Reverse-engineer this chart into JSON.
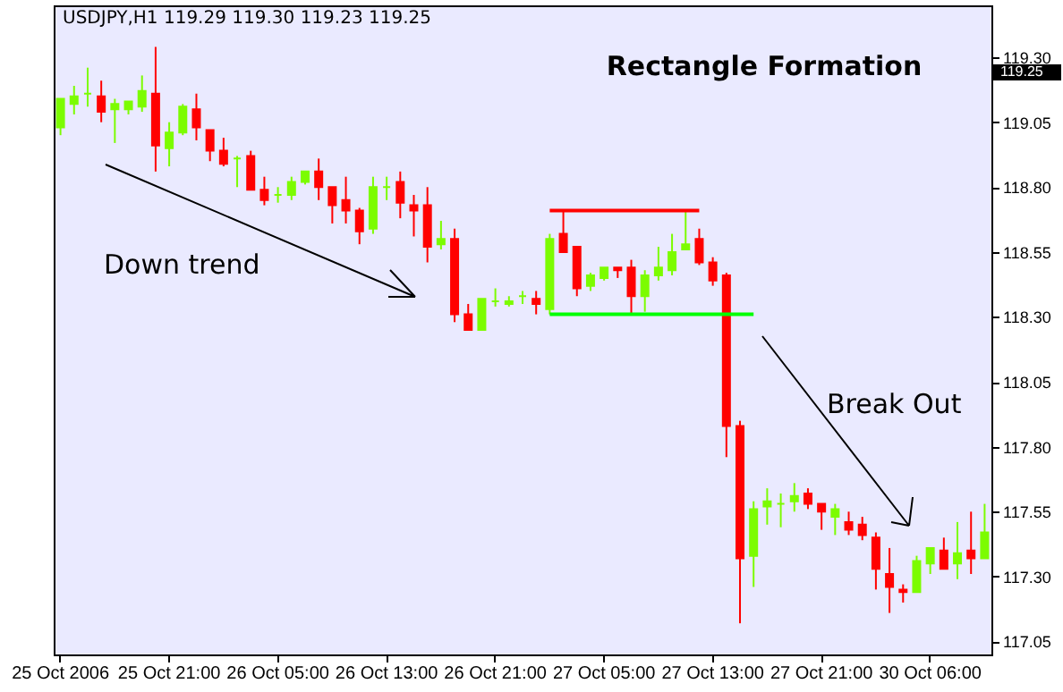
{
  "chart_data": {
    "type": "candlestick",
    "title": "Rectangle Formation",
    "annotations": [
      "USDJPY,H1  119.29 119.30 119.23 119.25",
      "Down trend",
      "Break Out",
      "119.25"
    ],
    "categories": [
      "25 Oct 2006",
      null,
      null,
      null,
      null,
      null,
      null,
      null,
      "25 Oct 21:00",
      null,
      null,
      null,
      null,
      null,
      null,
      null,
      "26 Oct 05:00",
      null,
      null,
      null,
      null,
      null,
      null,
      null,
      "26 Oct 13:00",
      null,
      null,
      null,
      null,
      null,
      null,
      null,
      "26 Oct 21:00",
      null,
      null,
      null,
      null,
      null,
      null,
      null,
      "27 Oct 05:00",
      null,
      null,
      null,
      null,
      null,
      null,
      null,
      "27 Oct 13:00",
      null,
      null,
      null,
      null,
      null,
      null,
      null,
      "27 Oct 21:00",
      null,
      null,
      null,
      null,
      null,
      null,
      null,
      "30 Oct 06:00",
      null,
      null,
      null,
      null
    ],
    "ohlc": [
      [
        119.03,
        119.14,
        119.0,
        119.14
      ],
      [
        119.12,
        119.19,
        119.08,
        119.15
      ],
      [
        119.16,
        119.26,
        119.11,
        119.16
      ],
      [
        119.15,
        119.21,
        119.05,
        119.09
      ],
      [
        119.1,
        119.14,
        118.97,
        119.12
      ],
      [
        119.1,
        119.13,
        119.08,
        119.13
      ],
      [
        119.11,
        119.23,
        119.09,
        119.17
      ],
      [
        119.16,
        119.34,
        118.86,
        118.96
      ],
      [
        118.95,
        119.05,
        118.88,
        119.01
      ],
      [
        119.01,
        119.12,
        119.0,
        119.11
      ],
      [
        119.1,
        119.16,
        118.98,
        119.03
      ],
      [
        119.02,
        119.02,
        118.9,
        118.94
      ],
      [
        118.94,
        118.99,
        118.88,
        118.89
      ],
      [
        118.91,
        118.92,
        118.8,
        118.91
      ],
      [
        118.92,
        118.94,
        118.79,
        118.79
      ],
      [
        118.79,
        118.84,
        118.73,
        118.75
      ],
      [
        118.77,
        118.8,
        118.74,
        118.77
      ],
      [
        118.77,
        118.84,
        118.75,
        118.82
      ],
      [
        118.82,
        118.86,
        118.81,
        118.86
      ],
      [
        118.86,
        118.91,
        118.75,
        118.8
      ],
      [
        118.8,
        118.8,
        118.66,
        118.73
      ],
      [
        118.75,
        118.84,
        118.66,
        118.71
      ],
      [
        118.71,
        118.72,
        118.58,
        118.63
      ],
      [
        118.64,
        118.84,
        118.62,
        118.8
      ],
      [
        118.8,
        118.84,
        118.75,
        118.8
      ],
      [
        118.82,
        118.86,
        118.68,
        118.74
      ],
      [
        118.73,
        118.77,
        118.61,
        118.71
      ],
      [
        118.73,
        118.8,
        118.51,
        118.57
      ],
      [
        118.58,
        118.67,
        118.56,
        118.6
      ],
      [
        118.6,
        118.64,
        118.28,
        118.31
      ],
      [
        118.31,
        118.35,
        118.25,
        118.25
      ],
      [
        118.25,
        118.37,
        118.25,
        118.37
      ],
      [
        118.36,
        118.41,
        118.34,
        118.36
      ],
      [
        118.35,
        118.38,
        118.34,
        118.36
      ],
      [
        118.38,
        118.4,
        118.35,
        118.38
      ],
      [
        118.37,
        118.4,
        118.31,
        118.35
      ],
      [
        118.33,
        118.62,
        118.31,
        118.6
      ],
      [
        118.62,
        118.71,
        118.55,
        118.55
      ],
      [
        118.57,
        118.57,
        118.38,
        118.41
      ],
      [
        118.42,
        118.47,
        118.4,
        118.46
      ],
      [
        118.45,
        118.49,
        118.44,
        118.49
      ],
      [
        118.49,
        118.49,
        118.45,
        118.48
      ],
      [
        118.49,
        118.52,
        118.31,
        118.38
      ],
      [
        118.38,
        118.48,
        118.32,
        118.46
      ],
      [
        118.46,
        118.57,
        118.44,
        118.49
      ],
      [
        118.48,
        118.62,
        118.46,
        118.55
      ],
      [
        118.56,
        118.71,
        118.56,
        118.58
      ],
      [
        118.6,
        118.64,
        118.5,
        118.51
      ],
      [
        118.51,
        118.53,
        118.42,
        118.44
      ],
      [
        118.46,
        118.47,
        117.76,
        117.88
      ],
      [
        117.88,
        117.9,
        117.12,
        117.37
      ],
      [
        117.38,
        117.59,
        117.26,
        117.56
      ],
      [
        117.57,
        117.64,
        117.5,
        117.59
      ],
      [
        117.58,
        117.62,
        117.49,
        117.58
      ],
      [
        117.59,
        117.66,
        117.55,
        117.61
      ],
      [
        117.62,
        117.64,
        117.56,
        117.58
      ],
      [
        117.58,
        117.58,
        117.48,
        117.55
      ],
      [
        117.53,
        117.58,
        117.46,
        117.56
      ],
      [
        117.51,
        117.55,
        117.46,
        117.48
      ],
      [
        117.5,
        117.53,
        117.44,
        117.46
      ],
      [
        117.45,
        117.47,
        117.25,
        117.33
      ],
      [
        117.31,
        117.41,
        117.16,
        117.26
      ],
      [
        117.25,
        117.27,
        117.2,
        117.24
      ],
      [
        117.24,
        117.38,
        117.24,
        117.36
      ],
      [
        117.35,
        117.41,
        117.31,
        117.41
      ],
      [
        117.4,
        117.45,
        117.33,
        117.33
      ],
      [
        117.35,
        117.51,
        117.29,
        117.39
      ],
      [
        117.4,
        117.55,
        117.31,
        117.37
      ],
      [
        117.37,
        117.58,
        117.37,
        117.47
      ]
    ],
    "colors": [
      "#7cfc00",
      "#7cfc00",
      "#7cfc00",
      "#ff0000",
      "#7cfc00",
      "#7cfc00",
      "#7cfc00",
      "#ff0000",
      "#7cfc00",
      "#7cfc00",
      "#ff0000",
      "#ff0000",
      "#ff0000",
      "#7cfc00",
      "#ff0000",
      "#ff0000",
      "#7cfc00",
      "#7cfc00",
      "#7cfc00",
      "#ff0000",
      "#ff0000",
      "#ff0000",
      "#ff0000",
      "#7cfc00",
      "#7cfc00",
      "#ff0000",
      "#ff0000",
      "#ff0000",
      "#7cfc00",
      "#ff0000",
      "#ff0000",
      "#7cfc00",
      "#7cfc00",
      "#7cfc00",
      "#7cfc00",
      "#ff0000",
      "#7cfc00",
      "#ff0000",
      "#ff0000",
      "#7cfc00",
      "#7cfc00",
      "#ff0000",
      "#ff0000",
      "#7cfc00",
      "#7cfc00",
      "#7cfc00",
      "#7cfc00",
      "#ff0000",
      "#ff0000",
      "#ff0000",
      "#ff0000",
      "#7cfc00",
      "#7cfc00",
      "#7cfc00",
      "#7cfc00",
      "#ff0000",
      "#ff0000",
      "#7cfc00",
      "#ff0000",
      "#ff0000",
      "#ff0000",
      "#ff0000",
      "#ff0000",
      "#7cfc00",
      "#7cfc00",
      "#ff0000",
      "#7cfc00",
      "#ff0000",
      "#7cfc00"
    ],
    "series": [
      {
        "type": "line",
        "color": "#ff0000",
        "values": [
          null,
          null,
          null,
          null,
          null,
          null,
          null,
          null,
          null,
          null,
          null,
          null,
          null,
          null,
          null,
          null,
          null,
          null,
          null,
          null,
          null,
          null,
          null,
          null,
          null,
          null,
          null,
          null,
          null,
          null,
          null,
          null,
          null,
          null,
          null,
          null,
          118.71,
          118.71,
          118.71,
          118.71,
          118.71,
          118.71,
          118.71,
          118.71,
          118.71,
          118.71,
          118.71,
          118.71,
          null,
          null,
          null,
          null,
          null,
          null,
          null,
          null,
          null,
          null,
          null,
          null,
          null,
          null,
          null,
          null,
          null,
          null,
          null,
          null,
          null
        ]
      },
      {
        "type": "line",
        "color": "#00ff00",
        "values": [
          null,
          null,
          null,
          null,
          null,
          null,
          null,
          null,
          null,
          null,
          null,
          null,
          null,
          null,
          null,
          null,
          null,
          null,
          null,
          null,
          null,
          null,
          null,
          null,
          null,
          null,
          null,
          null,
          null,
          null,
          null,
          null,
          null,
          null,
          null,
          null,
          118.31,
          118.31,
          118.31,
          118.31,
          118.31,
          118.31,
          118.31,
          118.31,
          118.31,
          118.31,
          118.31,
          118.31,
          118.31,
          118.31,
          118.31,
          118.31,
          null,
          null,
          null,
          null,
          null,
          null,
          null,
          null,
          null,
          null,
          null,
          null,
          null,
          null,
          null,
          null,
          null
        ]
      }
    ],
    "ylim": [
      117.0,
      119.5
    ],
    "yticks": [
      117.05,
      {
        "value": 117.3,
        "label": "117.30"
      },
      117.55,
      {
        "value": 117.8,
        "label": "117.80"
      },
      118.05,
      {
        "value": 118.3,
        "label": "118.30"
      },
      118.55,
      {
        "value": 118.8,
        "label": "118.80"
      },
      119.05,
      {
        "value": 119.3,
        "label": "119.30"
      }
    ],
    "grid": false
  }
}
